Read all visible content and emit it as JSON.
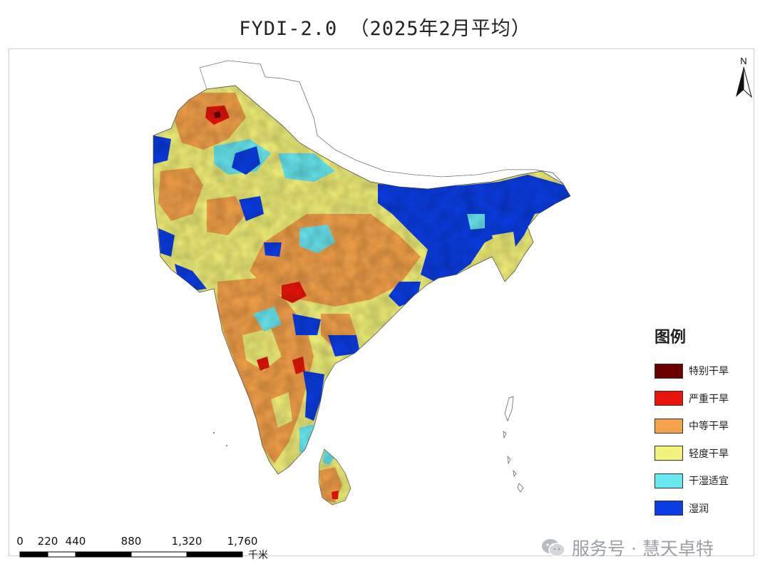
{
  "title": "FYDI-2.0  （2025年2月平均）",
  "north_label": "N",
  "legend": {
    "title": "图例",
    "items": [
      {
        "label": "特别干旱",
        "color": "#6b0000"
      },
      {
        "label": "严重干旱",
        "color": "#e8140a"
      },
      {
        "label": "中等干旱",
        "color": "#f5a24a"
      },
      {
        "label": "轻度干旱",
        "color": "#f3f27a"
      },
      {
        "label": "干湿适宜",
        "color": "#69e8f0"
      },
      {
        "label": "湿润",
        "color": "#0a3de6"
      }
    ]
  },
  "scale_bar": {
    "ticks": [
      "0",
      "220",
      "440",
      "880",
      "1,320",
      "1,760"
    ],
    "unit": "千米"
  },
  "watermark": {
    "text": "服务号 · 慧天卓特",
    "icon": "wechat-icon"
  }
}
